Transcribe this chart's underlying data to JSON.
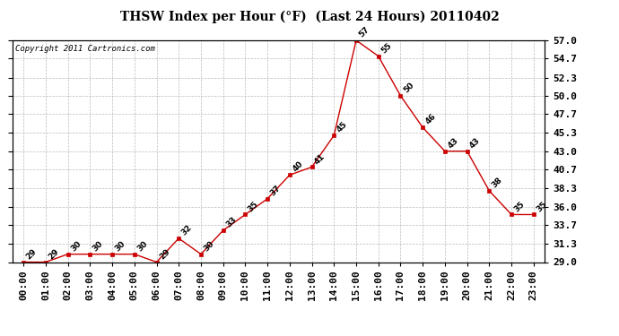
{
  "title": "THSW Index per Hour (°F)  (Last 24 Hours) 20110402",
  "copyright": "Copyright 2011 Cartronics.com",
  "hours": [
    "00:00",
    "01:00",
    "02:00",
    "03:00",
    "04:00",
    "05:00",
    "06:00",
    "07:00",
    "08:00",
    "09:00",
    "10:00",
    "11:00",
    "12:00",
    "13:00",
    "14:00",
    "15:00",
    "16:00",
    "17:00",
    "18:00",
    "19:00",
    "20:00",
    "21:00",
    "22:00",
    "23:00"
  ],
  "values": [
    29,
    29,
    30,
    30,
    30,
    30,
    29,
    32,
    30,
    33,
    35,
    37,
    40,
    41,
    45,
    57,
    55,
    50,
    46,
    43,
    43,
    38,
    35,
    35
  ],
  "line_color": "#cc0000",
  "marker_color": "#cc0000",
  "bg_color": "#ffffff",
  "grid_color": "#bbbbbb",
  "ylim_min": 29.0,
  "ylim_max": 57.0,
  "yticks": [
    29.0,
    31.3,
    33.7,
    36.0,
    38.3,
    40.7,
    43.0,
    45.3,
    47.7,
    50.0,
    52.3,
    54.7,
    57.0
  ],
  "title_fontsize": 10,
  "label_fontsize": 6.5,
  "tick_fontsize": 8,
  "copyright_fontsize": 6.5
}
